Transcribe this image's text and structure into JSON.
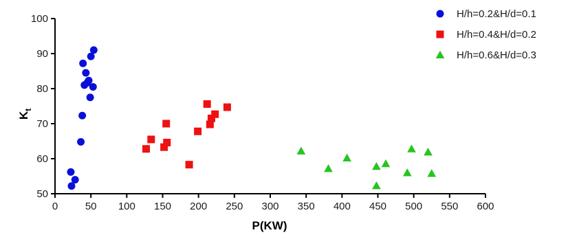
{
  "chart_data": {
    "type": "scatter",
    "xlabel": "P(KW)",
    "ylabel_main": "K",
    "ylabel_sub": "t",
    "xlim": [
      0,
      600
    ],
    "ylim": [
      50,
      100
    ],
    "x_ticks": [
      0,
      50,
      100,
      150,
      200,
      250,
      300,
      350,
      400,
      450,
      500,
      550,
      600
    ],
    "y_ticks": [
      50,
      60,
      70,
      80,
      90,
      100
    ],
    "grid": false,
    "legend_position": "top-right",
    "series": [
      {
        "name": "H/h=0.2&H/d=0.1",
        "marker": "circle",
        "color": "#0a10d8",
        "points": [
          [
            22,
            56.2
          ],
          [
            23,
            52.2
          ],
          [
            28,
            54.0
          ],
          [
            36,
            64.8
          ],
          [
            38,
            72.3
          ],
          [
            39,
            87.2
          ],
          [
            41,
            81.0
          ],
          [
            43,
            84.5
          ],
          [
            45,
            81.7
          ],
          [
            47,
            82.3
          ],
          [
            49,
            77.5
          ],
          [
            50,
            89.2
          ],
          [
            53,
            80.5
          ],
          [
            54,
            91.0
          ]
        ]
      },
      {
        "name": "H/h=0.4&H/d=0.2",
        "marker": "square",
        "color": "#ee1111",
        "points": [
          [
            127,
            62.8
          ],
          [
            134,
            65.5
          ],
          [
            152,
            63.3
          ],
          [
            155,
            70.0
          ],
          [
            156,
            64.6
          ],
          [
            187,
            58.3
          ],
          [
            199,
            67.8
          ],
          [
            212,
            75.6
          ],
          [
            216,
            69.8
          ],
          [
            218,
            71.5
          ],
          [
            223,
            72.7
          ],
          [
            240,
            74.7
          ]
        ]
      },
      {
        "name": "H/h=0.6&H/d=0.3",
        "marker": "triangle",
        "color": "#27c51f",
        "points": [
          [
            343,
            62.2
          ],
          [
            381,
            57.2
          ],
          [
            407,
            60.2
          ],
          [
            448,
            57.8
          ],
          [
            448,
            52.3
          ],
          [
            461,
            58.6
          ],
          [
            491,
            56.0
          ],
          [
            497,
            62.8
          ],
          [
            520,
            61.9
          ],
          [
            525,
            55.8
          ]
        ]
      }
    ]
  }
}
